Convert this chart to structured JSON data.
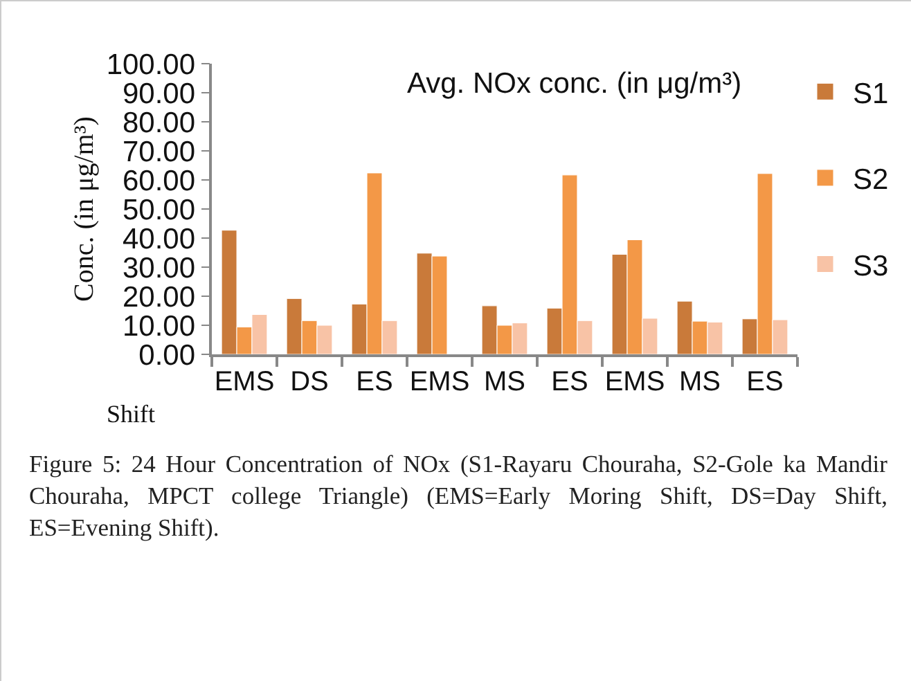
{
  "chart_data": {
    "type": "bar",
    "title": "Avg. NOx conc. (in μg/m³)",
    "xlabel": "Shift",
    "ylabel": "Conc. (in μg/m³)",
    "categories": [
      "EMS",
      "DS",
      "ES",
      "EMS",
      "MS",
      "ES",
      "EMS",
      "MS",
      "ES"
    ],
    "series": [
      {
        "name": "S1",
        "color": "#c97a3a",
        "values": [
          42.7,
          19.2,
          17.3,
          34.8,
          16.7,
          15.9,
          34.4,
          18.3,
          12.2
        ]
      },
      {
        "name": "S2",
        "color": "#f39847",
        "values": [
          9.4,
          11.6,
          62.4,
          33.8,
          10.0,
          61.7,
          39.4,
          11.4,
          62.2
        ]
      },
      {
        "name": "S3",
        "color": "#f8c3a6",
        "values": [
          13.7,
          10.0,
          11.6,
          null,
          10.8,
          11.6,
          12.4,
          11.1,
          11.9
        ]
      }
    ],
    "ylim": [
      0,
      100
    ],
    "yticks": [
      {
        "value": 0,
        "label": "0.00"
      },
      {
        "value": 10,
        "label": "10.00"
      },
      {
        "value": 20,
        "label": "20.00"
      },
      {
        "value": 30,
        "label": "30.00"
      },
      {
        "value": 40,
        "label": "40.00"
      },
      {
        "value": 50,
        "label": "50.00"
      },
      {
        "value": 60,
        "label": "60.00"
      },
      {
        "value": 70,
        "label": "70.00"
      },
      {
        "value": 80,
        "label": "80.00"
      },
      {
        "value": 90,
        "label": "90.00"
      },
      {
        "value": 100,
        "label": "100.00"
      }
    ],
    "grid": false,
    "legend": "right",
    "annotations": [
      "Figure 5: 24 Hour Concentration of NOx (S1-Rayaru Chouraha, S2-Gole ka Mandir Chouraha, MPCT college Triangle) (EMS=Early Moring Shift, DS=Day Shift, ES=Evening Shift)."
    ]
  }
}
